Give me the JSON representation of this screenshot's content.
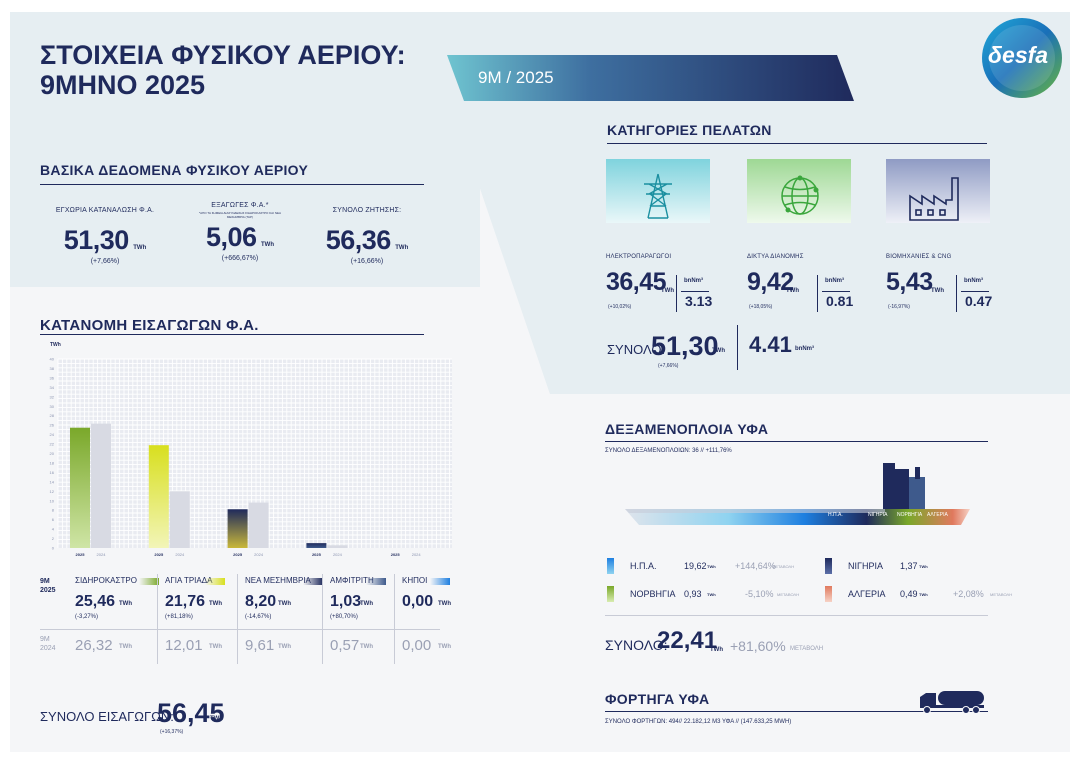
{
  "header": {
    "title_line1": "ΣΤΟΙΧΕΙΑ ΦΥΣΙΚΟΥ ΑΕΡΙΟΥ:",
    "title_line2": "9ΜΗΝΟ 2025",
    "period_tab": "9M / 2025",
    "logo_text": "δesfa"
  },
  "basic": {
    "title": "ΒΑΣΙΚΑ ΔΕΔΟΜΕΝΑ ΦΥΣΙΚΟΥ ΑΕΡΙΟΥ",
    "items": [
      {
        "label": "ΕΓΧΩΡΙΑ ΚΑΤΑΝΑΛΩΣΗ Φ.Α.",
        "note": "",
        "value": "51,30",
        "unit": "TWh",
        "change": "(+7,66%)"
      },
      {
        "label": "ΕΞΑΓΩΓΕΣ Φ.Α.*",
        "note": "*ΑΠΟ ΤΑ ΣΗΜΕΙΑ ΔΙΑΣΥΝΔΕΣΗΣ ΣΙΔΗΡΟΚΑΣΤΡΟ ΚΑΙ ΝΕΑ ΜΕΣΗΜΒΡΙΑ (TAP)",
        "value": "5,06",
        "unit": "TWh",
        "change": "(+666,67%)"
      },
      {
        "label": "ΣΥΝΟΛΟ ΖΗΤΗΣΗΣ:",
        "note": "",
        "value": "56,36",
        "unit": "TWh",
        "change": "(+16,66%)"
      }
    ]
  },
  "imports": {
    "title": "ΚΑΤΑΝΟΜΗ ΕΙΣΑΓΩΓΩΝ Φ.Α.",
    "unit_label": "TWh",
    "row_label_current": "9M\n2025",
    "row_label_current_1": "9M",
    "row_label_current_2": "2025",
    "row_label_prev_1": "9M",
    "row_label_prev_2": "2024",
    "unit": "TWh",
    "points": [
      {
        "name": "ΣΙΔΗΡΟΚΑΣΤΡΟ",
        "value": "25,46",
        "change": "(-3,27%)",
        "prev": "26,32",
        "color": "#7aa82a"
      },
      {
        "name": "ΑΓΙΑ ΤΡΙΑΔΑ",
        "value": "21,76",
        "change": "(+81,18%)",
        "prev": "12,01",
        "color": "#d8df1e"
      },
      {
        "name": "ΝΕΑ ΜΕΣΗΜΒΡΙΑ",
        "value": "8,20",
        "change": "(-14,67%)",
        "prev": "9,61",
        "color": "#1f2a5c"
      },
      {
        "name": "ΑΜΦΙΤΡΙΤΗ",
        "value": "1,03",
        "change": "(+80,70%)",
        "prev": "0,57",
        "color": "#3e5a8c"
      },
      {
        "name": "ΚΗΠΟΙ",
        "value": "0,00",
        "change": "",
        "prev": "0,00",
        "color": "#1e7fe0"
      }
    ],
    "total_label": "ΣΥΝΟΛΟ ΕΙΣΑΓΩΓΩΝ:",
    "total_value": "56,45",
    "total_unit": "TWh",
    "total_change": "(+16,37%)"
  },
  "chart_data": {
    "type": "bar",
    "categories": [
      "ΣΙΔΗΡΟΚΑΣΤΡΟ",
      "ΑΓΙΑ ΤΡΙΑΔΑ",
      "ΝΕΑ ΜΕΣΗΜΒΡΙΑ",
      "ΑΜΦΙΤΡΙΤΗ",
      "ΚΗΠΟΙ"
    ],
    "series": [
      {
        "name": "2025",
        "values": [
          25.46,
          21.76,
          8.2,
          1.03,
          0.0
        ]
      },
      {
        "name": "2024",
        "values": [
          26.32,
          12.01,
          9.61,
          0.57,
          0.0
        ]
      }
    ],
    "ylabel": "TWh",
    "ylim": [
      0,
      40
    ],
    "yticks": [
      "0",
      "2",
      "4",
      "6",
      "8",
      "10",
      "12",
      "14",
      "16",
      "18",
      "20",
      "22",
      "24",
      "26",
      "28",
      "30",
      "32",
      "34",
      "36",
      "38",
      "40"
    ],
    "bar_labels": [
      "2025",
      "2024"
    ],
    "grid": true
  },
  "customers": {
    "title": "ΚΑΤΗΓΟΡΙΕΣ ΠΕΛΑΤΩΝ",
    "items": [
      {
        "label": "ΗΛΕΚΤΡΟΠΑΡΑΓΩΓΟΙ",
        "value": "36,45",
        "unit": "TWh",
        "change": "(+10,02%)",
        "vol_unit": "bnNm³",
        "vol": "3.13",
        "icon": "power-tower-icon",
        "bg": "#7fd3dd"
      },
      {
        "label": "ΔΙΚΤΥΑ ΔΙΑΝΟΜΗΣ",
        "value": "9,42",
        "unit": "TWh",
        "change": "(+18,05%)",
        "vol_unit": "bnNm³",
        "vol": "0.81",
        "icon": "globe-network-icon",
        "bg": "#9ed894"
      },
      {
        "label": "ΒΙΟΜΗΧΑΝΙΕΣ & CNG",
        "value": "5,43",
        "unit": "TWh",
        "change": "(-16,97%)",
        "vol_unit": "bnNm³",
        "vol": "0.47",
        "icon": "factory-icon",
        "bg": "#8f9bc4"
      }
    ],
    "total_label": "ΣΥΝΟΛΟ:",
    "total_value": "51,30",
    "total_unit": "TWh",
    "total_change": "(+7,66%)",
    "total_vol": "4.41",
    "total_vol_unit": "bnNm³"
  },
  "lng": {
    "title": "ΔΕΞΑΜΕΝΟΠΛΟΙΑ ΥΦΑ",
    "subtitle": "ΣΥΝΟΛΟ ΔΕΞΑΜΕΝΟΠΛΟΙΩΝ: 36 // +111,76%",
    "ship_labels": [
      "Η.Π.Α.",
      "ΝΙΓΗΡΙΑ",
      "ΝΟΡΒΗΓΙΑ",
      "ΑΛΓΕΡΙΑ"
    ],
    "sources": [
      {
        "name": "Η.Π.Α.",
        "value": "19,62",
        "unit": "TWh",
        "change": "+144,64%",
        "change_label": "ΜΕΤΑΒΟΛΗ",
        "color_top": "#1e7fe0",
        "color_bottom": "#8fd3f0"
      },
      {
        "name": "ΝΟΡΒΗΓΙΑ",
        "value": "0,93",
        "unit": "TWh",
        "change": "-5,10%",
        "change_label": "ΜΕΤΑΒΟΛΗ",
        "color_top": "#7aa82a",
        "color_bottom": "#d8ecb0"
      },
      {
        "name": "ΝΙΓΗΡΙΑ",
        "value": "1,37",
        "unit": "TWh",
        "change": "",
        "change_label": "",
        "color_top": "#1f2a5c",
        "color_bottom": "#5b6fa8"
      },
      {
        "name": "ΑΛΓΕΡΙΑ",
        "value": "0,49",
        "unit": "TWh",
        "change": "+2,08%",
        "change_label": "ΜΕΤΑΒΟΛΗ",
        "color_top": "#e0795e",
        "color_bottom": "#f6d2c6"
      }
    ],
    "total_label": "ΣΥΝΟΛΟ:",
    "total_value": "22,41",
    "total_unit": "TWh",
    "total_change": "+81,60%",
    "total_change_label": "ΜΕΤΑΒΟΛΗ"
  },
  "trucks": {
    "title": "ΦΟΡΤΗΓΑ ΥΦΑ",
    "subtitle": "ΣΥΝΟΛΟ ΦΟΡΤΗΓΩΝ: 494// 22.182,12 Μ3 ΥΦΑ // (147.633,25 MWH)"
  }
}
